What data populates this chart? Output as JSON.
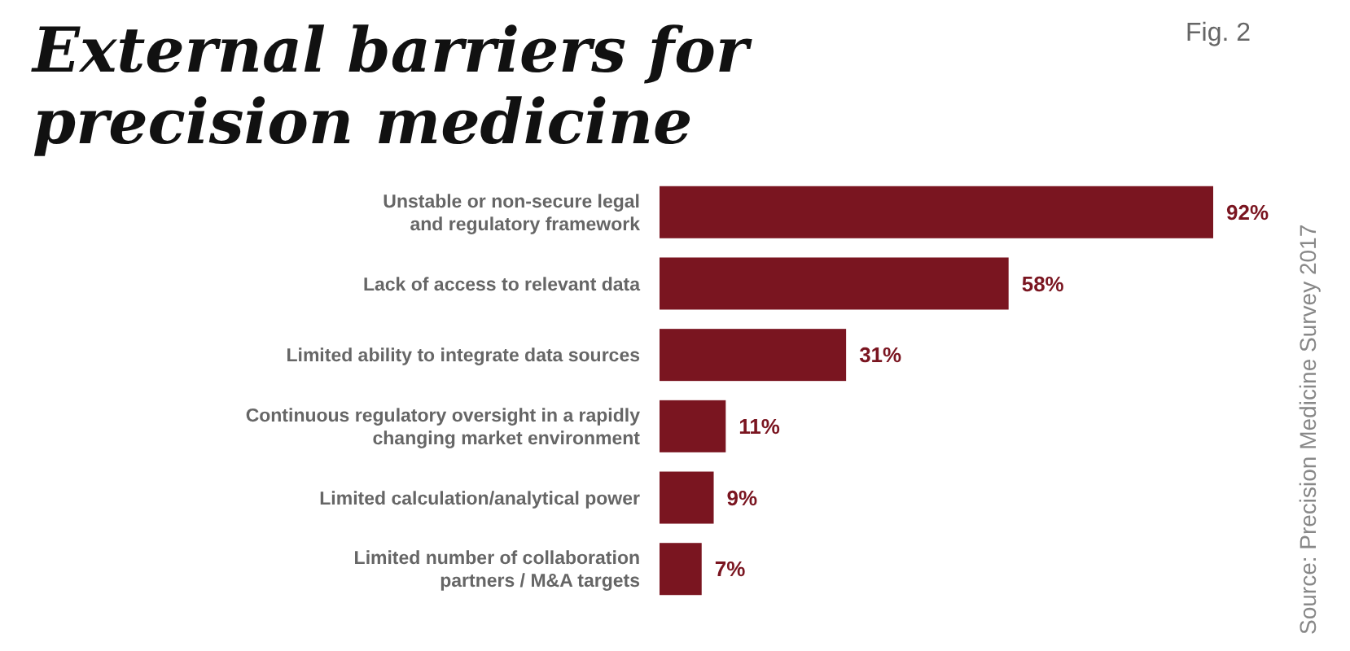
{
  "chart_data": {
    "type": "bar",
    "orientation": "horizontal",
    "title": "External barriers for\nprecision medicine",
    "subtitle": "Fig. 2",
    "categories": [
      "Unstable or non-secure legal\nand regulatory framework",
      "Lack of access to relevant data",
      "Limited ability to integrate data sources",
      "Continuous regulatory oversight in a rapidly\nchanging market environment",
      "Limited calculation/analytical power",
      "Limited number of collaboration\npartners / M&A targets"
    ],
    "values": [
      92,
      58,
      31,
      11,
      9,
      7
    ],
    "value_labels": [
      "92%",
      "58%",
      "31%",
      "11%",
      "9%",
      "7%"
    ],
    "color": "#7a1520",
    "annotations": [
      "Source: Precision Medicine Survey 2017"
    ]
  }
}
